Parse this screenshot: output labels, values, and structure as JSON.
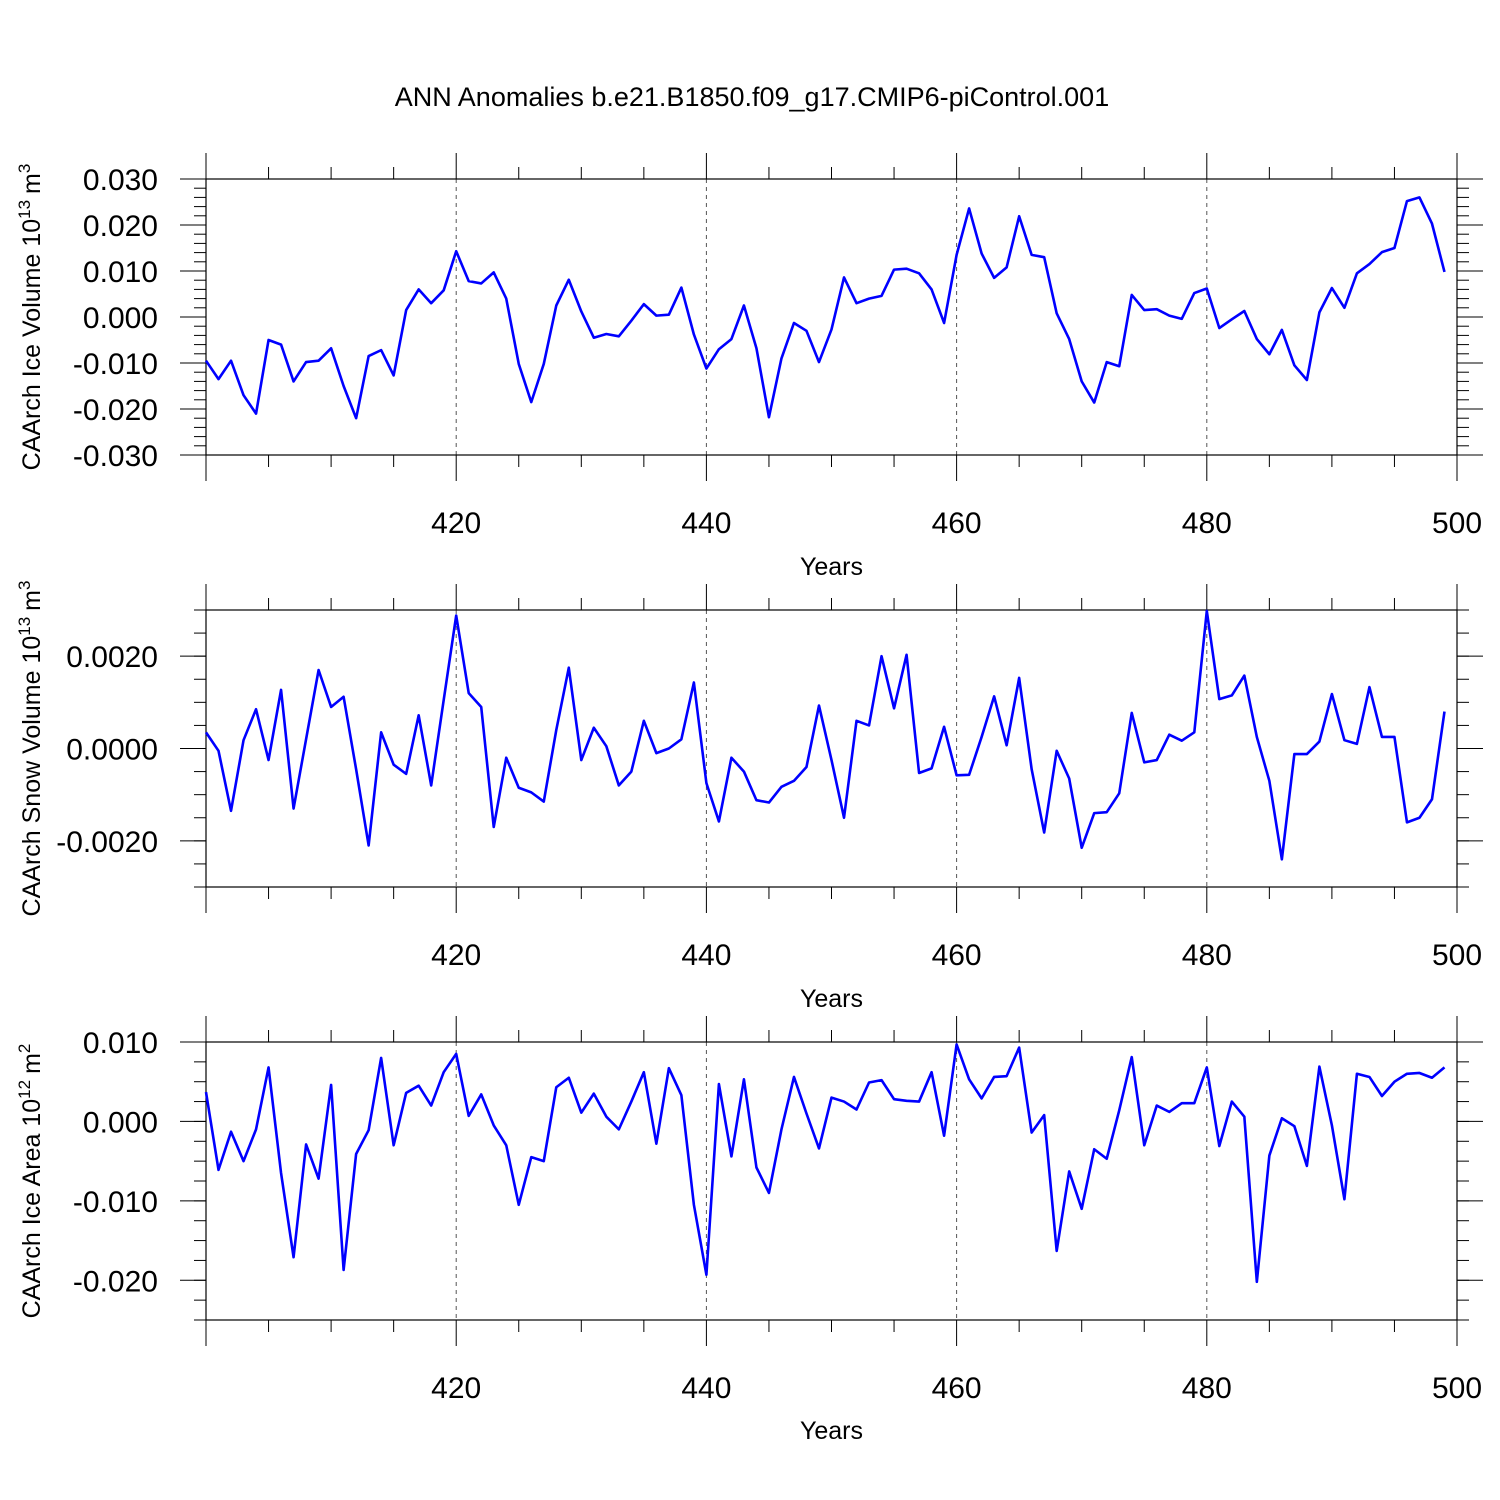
{
  "title": "ANN Anomalies b.e21.B1850.f09_g17.CMIP6-piControl.001",
  "chart_data": [
    {
      "type": "line",
      "ylabel": "CAArch Ice Volume 10",
      "ylabel_exp": "13",
      "ylabel_unit": "m",
      "ylabel_unit_exp": "3",
      "xlabel": "Years",
      "xlim": [
        400,
        500
      ],
      "ylim": [
        -0.03,
        0.03
      ],
      "x_ticks": [
        420,
        440,
        460,
        480,
        500
      ],
      "y_ticks": [
        -0.03,
        -0.02,
        -0.01,
        0.0,
        0.01,
        0.02,
        0.03
      ],
      "y_tick_labels": [
        "-0.030",
        "-0.020",
        "-0.010",
        "0.000",
        "0.010",
        "0.020",
        "0.030"
      ],
      "grid": "dashed vertical lines at 420, 440, 460, 480",
      "color": "#0000ff",
      "x_start": 400,
      "values": [
        -0.0095,
        -0.0135,
        -0.0095,
        -0.017,
        -0.021,
        -0.005,
        -0.006,
        -0.014,
        -0.0098,
        -0.0095,
        -0.0068,
        -0.015,
        -0.022,
        -0.0085,
        -0.0072,
        -0.0127,
        0.0015,
        0.006,
        0.003,
        0.0058,
        0.0143,
        0.0078,
        0.0073,
        0.0097,
        0.004,
        -0.0102,
        -0.0185,
        -0.0102,
        0.0025,
        0.0081,
        0.0012,
        -0.0045,
        -0.0037,
        -0.0042,
        -0.0008,
        0.0028,
        0.0003,
        0.0005,
        0.0064,
        -0.0038,
        -0.0112,
        -0.007,
        -0.0048,
        0.0025,
        -0.0068,
        -0.0218,
        -0.009,
        -0.0013,
        -0.003,
        -0.0098,
        -0.0027,
        0.0086,
        0.003,
        0.004,
        0.0046,
        0.0103,
        0.0105,
        0.0095,
        0.006,
        -0.0013,
        0.0135,
        0.0236,
        0.0138,
        0.0085,
        0.0108,
        0.0219,
        0.0135,
        0.013,
        0.0008,
        -0.0048,
        -0.014,
        -0.0186,
        -0.0098,
        -0.0107,
        0.0048,
        0.0015,
        0.0017,
        0.0003,
        -0.0004,
        0.0052,
        0.0062,
        -0.0024,
        -0.0005,
        0.0013,
        -0.0048,
        -0.0081,
        -0.0028,
        -0.0105,
        -0.0137,
        0.001,
        0.0063,
        0.002,
        0.0095,
        0.0115,
        0.0141,
        0.015,
        0.0252,
        0.026,
        0.0203,
        0.0098
      ]
    },
    {
      "type": "line",
      "ylabel": "CAArch Snow Volume 10",
      "ylabel_exp": "13",
      "ylabel_unit": "m",
      "ylabel_unit_exp": "3",
      "xlabel": "Years",
      "xlim": [
        400,
        500
      ],
      "ylim": [
        -0.003,
        0.003
      ],
      "x_ticks": [
        420,
        440,
        460,
        480,
        500
      ],
      "y_ticks": [
        -0.002,
        0.0,
        0.002
      ],
      "y_tick_labels": [
        "-0.0020",
        "0.0000",
        "0.0020"
      ],
      "grid": "dashed vertical lines at 420, 440, 460, 480",
      "color": "#0000ff",
      "x_start": 400,
      "values": [
        0.00035,
        -5e-05,
        -0.00135,
        0.00018,
        0.00085,
        -0.00025,
        0.00127,
        -0.0013,
        0.0002,
        0.0017,
        0.0009,
        0.00112,
        -0.00045,
        -0.0021,
        0.00035,
        -0.00035,
        -0.00055,
        0.00072,
        -0.0008,
        0.00105,
        0.00288,
        0.0012,
        0.0009,
        -0.0017,
        -0.0002,
        -0.00085,
        -0.00095,
        -0.00115,
        0.0004,
        0.00175,
        -0.00025,
        0.00045,
        5e-05,
        -0.0008,
        -0.0005,
        0.0006,
        -0.0001,
        0.0,
        0.0002,
        0.00143,
        -0.00075,
        -0.00158,
        -0.0002,
        -0.0005,
        -0.00112,
        -0.00117,
        -0.00083,
        -0.0007,
        -0.0004,
        0.00093,
        -0.00025,
        -0.0015,
        0.0006,
        0.0005,
        0.002,
        0.00087,
        0.00203,
        -0.00053,
        -0.00043,
        0.00047,
        -0.00058,
        -0.00057,
        0.00025,
        0.00113,
        7e-05,
        0.00153,
        -0.00045,
        -0.00182,
        -5e-05,
        -0.00065,
        -0.00215,
        -0.0014,
        -0.00138,
        -0.00097,
        0.00077,
        -0.0003,
        -0.00025,
        0.0003,
        0.00017,
        0.00035,
        0.00298,
        0.00107,
        0.00115,
        0.00158,
        0.00025,
        -0.0007,
        -0.0024,
        -0.00012,
        -0.00012,
        0.00015,
        0.00118,
        0.00018,
        0.0001,
        0.00133,
        0.00025,
        0.00025,
        -0.0016,
        -0.0015,
        -0.0011,
        0.0008
      ]
    },
    {
      "type": "line",
      "ylabel": "CAArch Ice Area 10",
      "ylabel_exp": "12",
      "ylabel_unit": "m",
      "ylabel_unit_exp": "2",
      "xlabel": "Years",
      "xlim": [
        400,
        500
      ],
      "ylim": [
        -0.025,
        0.01
      ],
      "x_ticks": [
        420,
        440,
        460,
        480,
        500
      ],
      "y_ticks": [
        -0.02,
        -0.01,
        0.0,
        0.01
      ],
      "y_tick_labels": [
        "-0.020",
        "-0.010",
        "0.000",
        "0.010"
      ],
      "grid": "dashed vertical lines at 420, 440, 460, 480",
      "color": "#0000ff",
      "x_start": 400,
      "values": [
        0.0037,
        -0.0061,
        -0.0013,
        -0.005,
        -0.001,
        0.0068,
        -0.0065,
        -0.0171,
        -0.0029,
        -0.0072,
        0.0046,
        -0.0187,
        -0.0041,
        -0.0011,
        0.008,
        -0.003,
        0.0036,
        0.0045,
        0.002,
        0.0062,
        0.0085,
        0.0007,
        0.0034,
        -0.0005,
        -0.003,
        -0.0105,
        -0.0045,
        -0.005,
        0.0043,
        0.0055,
        0.0011,
        0.0035,
        0.0006,
        -0.001,
        0.0025,
        0.0062,
        -0.0028,
        0.0067,
        0.0033,
        -0.0105,
        -0.0193,
        0.0047,
        -0.0044,
        0.0053,
        -0.0058,
        -0.009,
        -0.001,
        0.0056,
        0.001,
        -0.0034,
        0.003,
        0.0025,
        0.0015,
        0.0049,
        0.0052,
        0.0028,
        0.0026,
        0.0025,
        0.0062,
        -0.0018,
        0.0097,
        0.0053,
        0.0029,
        0.0056,
        0.0057,
        0.0093,
        -0.0014,
        0.0008,
        -0.0163,
        -0.0063,
        -0.011,
        -0.0035,
        -0.0047,
        0.0014,
        0.0081,
        -0.003,
        0.002,
        0.0012,
        0.0023,
        0.0023,
        0.0068,
        -0.0031,
        0.0025,
        0.0006,
        -0.0202,
        -0.0043,
        0.0004,
        -0.0006,
        -0.0056,
        0.0069,
        -0.0005,
        -0.0098,
        0.006,
        0.0056,
        0.0032,
        0.005,
        0.006,
        0.0061,
        0.0055,
        0.0068
      ]
    }
  ]
}
